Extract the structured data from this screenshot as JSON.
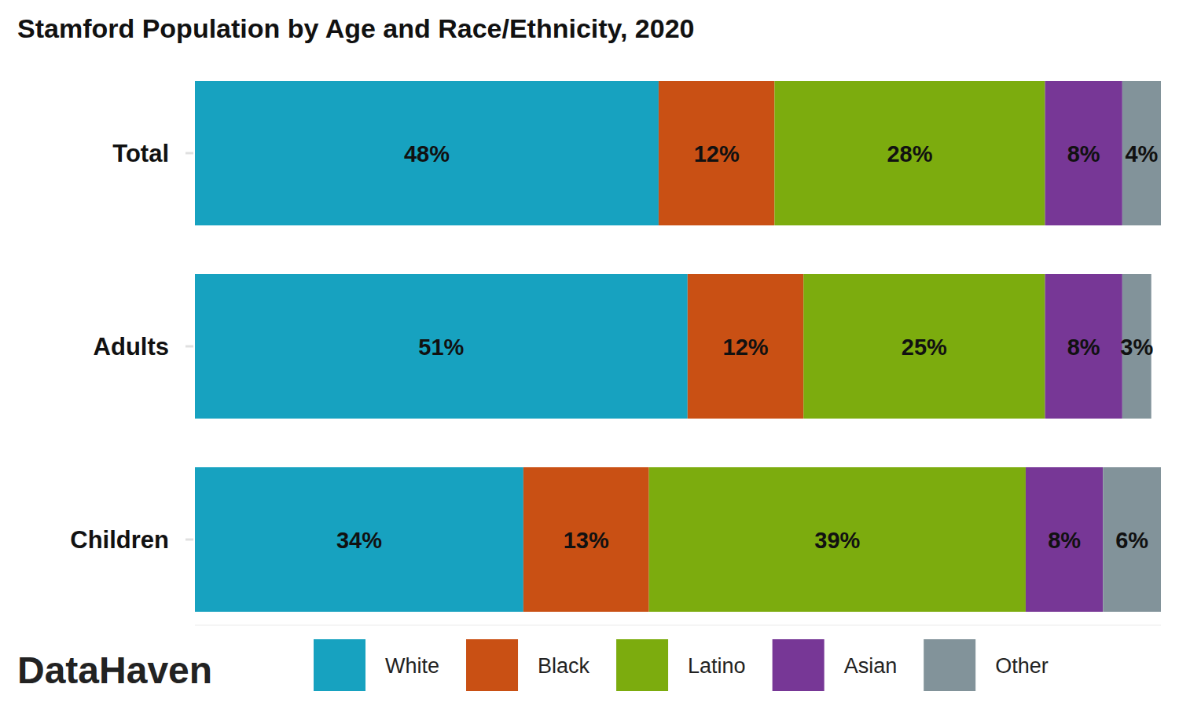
{
  "chart_data": {
    "type": "bar",
    "orientation": "horizontal",
    "stacked": true,
    "data_labels": true,
    "title": "Stamford Population by Age and Race/Ethnicity, 2020",
    "caption": "DataHaven",
    "categories": [
      "Total",
      "Adults",
      "Children"
    ],
    "xlim": [
      0,
      100
    ],
    "xticks": [],
    "tick_labels": "y",
    "grid": false,
    "legend": "bottom",
    "series": [
      {
        "name": "White",
        "color": "#17a2c0",
        "values": [
          48,
          51,
          34
        ],
        "value_labels": [
          "48%",
          "51%",
          "34%"
        ]
      },
      {
        "name": "Black",
        "color": "#c95014",
        "values": [
          12,
          12,
          13
        ],
        "value_labels": [
          "12%",
          "12%",
          "13%"
        ]
      },
      {
        "name": "Latino",
        "color": "#7cac0e",
        "values": [
          28,
          25,
          39
        ],
        "value_labels": [
          "28%",
          "25%",
          "39%"
        ]
      },
      {
        "name": "Asian",
        "color": "#773796",
        "values": [
          8,
          8,
          8
        ],
        "value_labels": [
          "8%",
          "8%",
          "8%"
        ]
      },
      {
        "name": "Other",
        "color": "#82939a",
        "values": [
          4,
          3,
          6
        ],
        "value_labels": [
          "4%",
          "3%",
          "6%"
        ]
      }
    ]
  }
}
